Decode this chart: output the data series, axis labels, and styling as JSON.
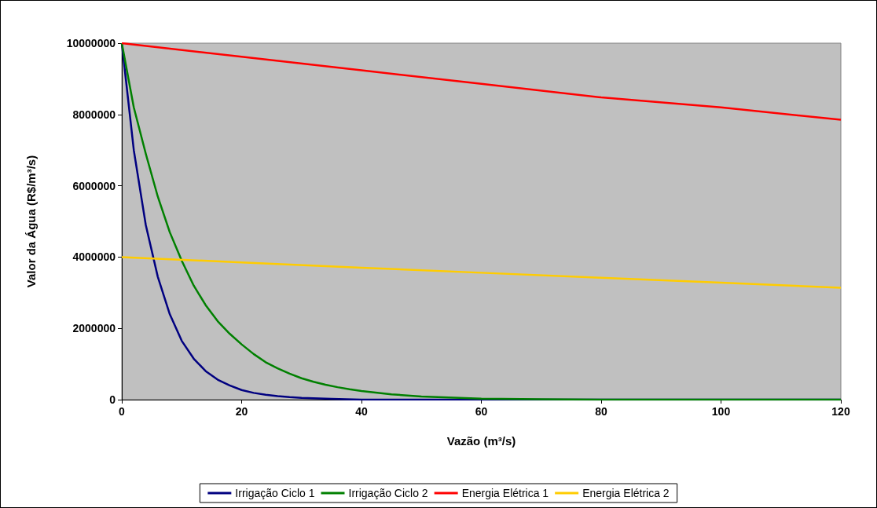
{
  "chart_data": {
    "type": "line",
    "xlabel": "Vazão (m³/s)",
    "ylabel": "Valor da Água (R$/m³/s)",
    "xlim": [
      0,
      120
    ],
    "xticks": [
      0,
      20,
      40,
      60,
      80,
      100,
      120
    ],
    "ylim": [
      0,
      10000000
    ],
    "yticks": [
      0,
      2000000,
      4000000,
      6000000,
      8000000,
      10000000
    ],
    "grid": false,
    "legend": "bottom",
    "marker": "none",
    "series": [
      {
        "name": "Irrigação Ciclo 1",
        "color": "#000080",
        "x": [
          0,
          2,
          4,
          6,
          8,
          10,
          12,
          14,
          16,
          18,
          20,
          22,
          24,
          26,
          28,
          30,
          32,
          35,
          40,
          50,
          60,
          120
        ],
        "values": [
          10000000,
          7000000,
          4900000,
          3450000,
          2400000,
          1650000,
          1150000,
          800000,
          560000,
          400000,
          270000,
          190000,
          140000,
          100000,
          70000,
          50000,
          40000,
          20000,
          0,
          0,
          0,
          0
        ]
      },
      {
        "name": "Irrigação Ciclo 2",
        "color": "#008000",
        "x": [
          0,
          2,
          4,
          6,
          8,
          10,
          12,
          14,
          16,
          18,
          20,
          22,
          24,
          26,
          28,
          30,
          32,
          34,
          36,
          38,
          40,
          45,
          50,
          60,
          70,
          80,
          120
        ],
        "values": [
          10000000,
          8200000,
          6900000,
          5700000,
          4700000,
          3900000,
          3200000,
          2650000,
          2200000,
          1850000,
          1550000,
          1280000,
          1050000,
          880000,
          730000,
          600000,
          500000,
          420000,
          350000,
          290000,
          240000,
          150000,
          90000,
          30000,
          10000,
          0,
          0
        ]
      },
      {
        "name": "Energia Elétrica 1",
        "color": "#ff0000",
        "x": [
          0,
          20,
          40,
          60,
          80,
          100,
          120
        ],
        "values": [
          10000000,
          9620000,
          9240000,
          8860000,
          8480000,
          8200000,
          7850000
        ]
      },
      {
        "name": "Energia Elétrica 2",
        "color": "#ffcc00",
        "x": [
          0,
          20,
          40,
          60,
          80,
          100,
          120
        ],
        "values": [
          4000000,
          3850000,
          3700000,
          3560000,
          3420000,
          3280000,
          3140000
        ]
      }
    ]
  }
}
